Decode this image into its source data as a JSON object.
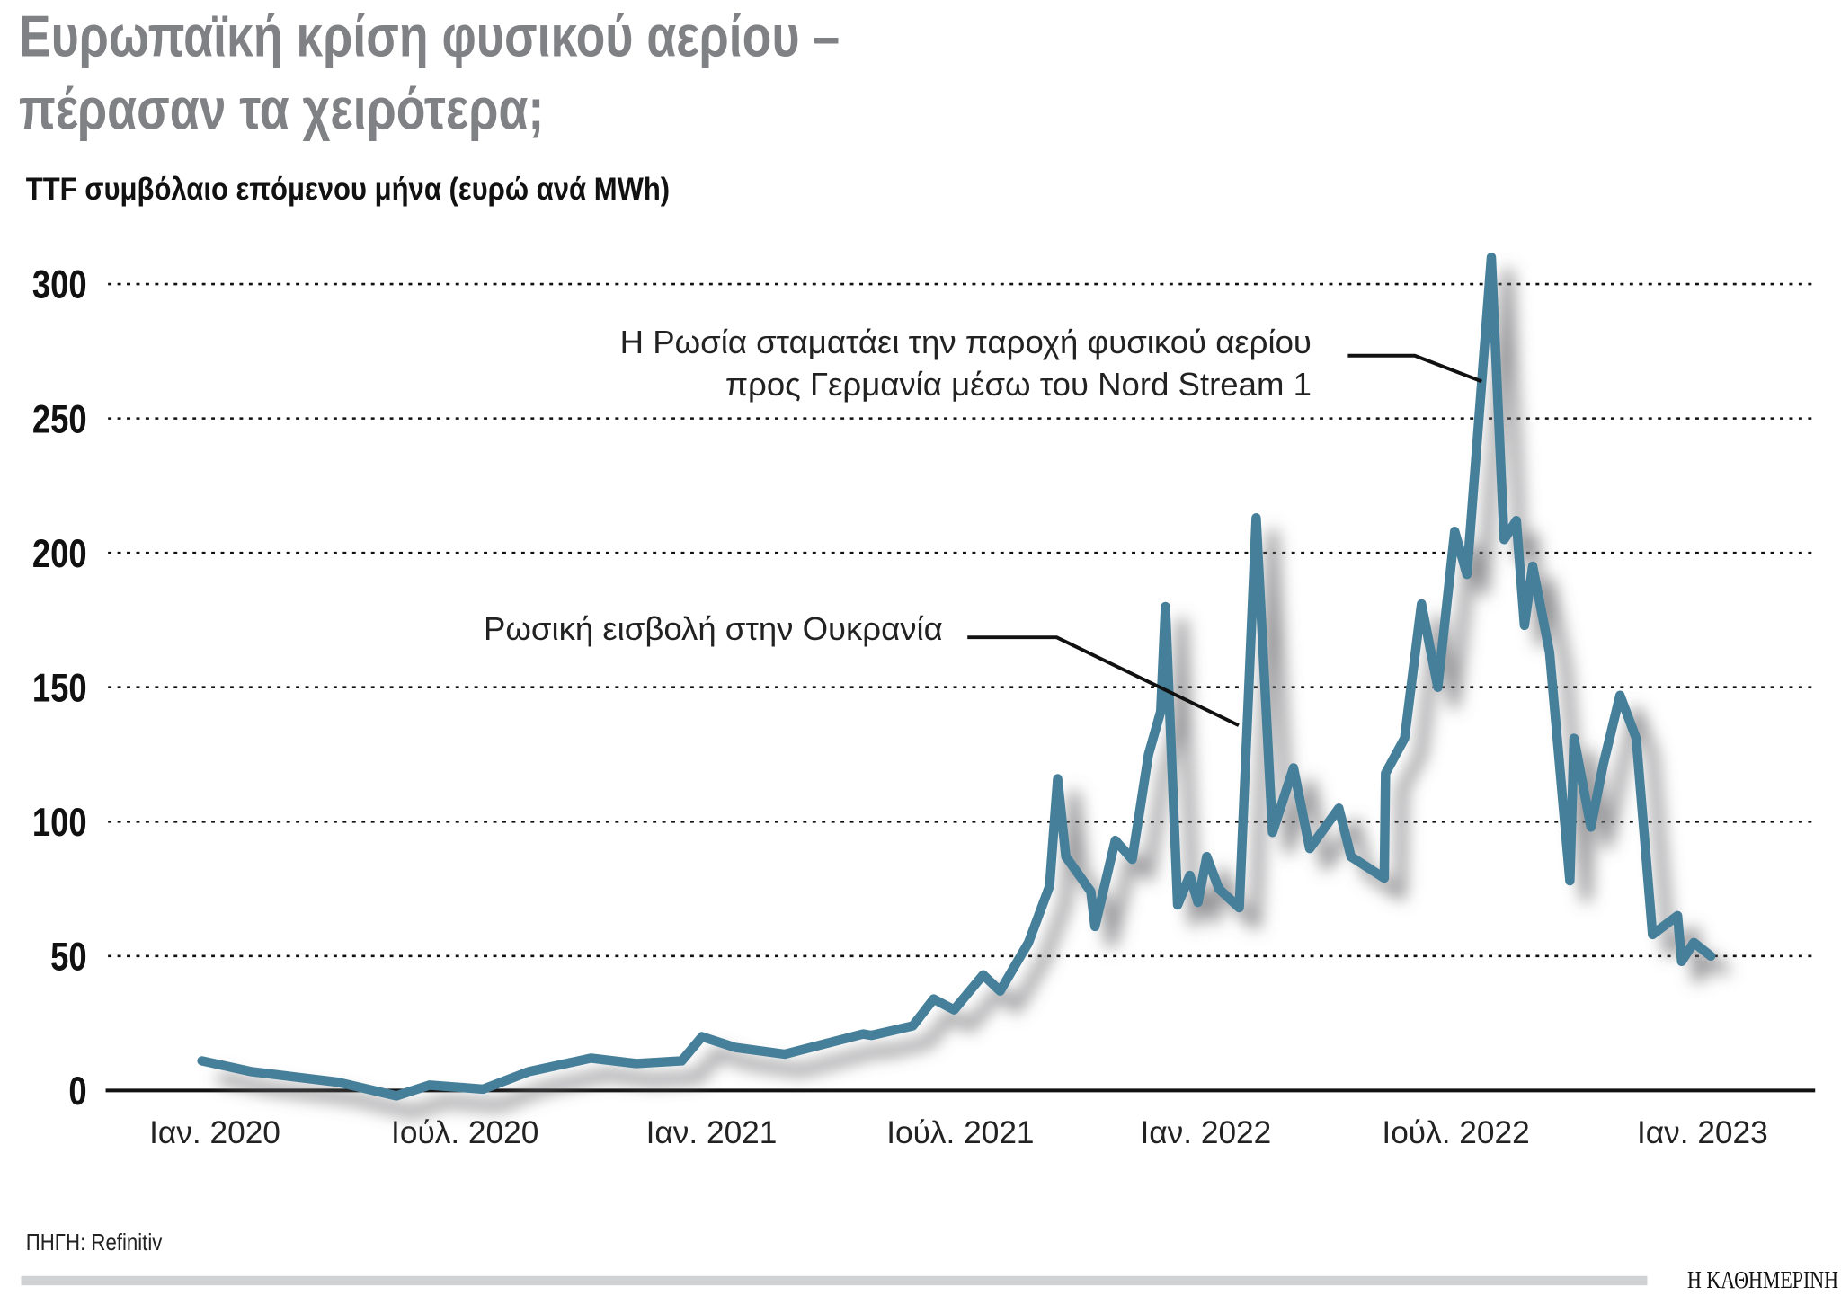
{
  "title_line1": "Ευρωπαϊκή κρίση φυσικού αερίου –",
  "title_line2": "πέρασαν τα χειρότερα;",
  "source": "ΠΗΓΗ: Refinitiv",
  "brand": "Η ΚΑΘΗΜΕΡΙΝΗ",
  "chart_data": {
    "type": "line",
    "title": "Ευρωπαϊκή κρίση φυσικού αερίου – πέρασαν τα χειρότερα;",
    "subtitle": "TTF συμβόλαιο επόμενου μήνα (ευρώ ανά MWh)",
    "ylim": [
      0,
      300
    ],
    "yticks": [
      "0",
      "50",
      "100",
      "150",
      "200",
      "250",
      "300"
    ],
    "xticks": [
      "Ιαν. 2020",
      "Ιούλ. 2020",
      "Ιαν. 2021",
      "Ιούλ. 2021",
      "Ιαν. 2022",
      "Ιούλ. 2022",
      "Ιαν. 2023"
    ],
    "grid": "horizontal dotted",
    "line_color": "#457f99",
    "series": [
      {
        "x": [
          "2019-12-22",
          "2020-01-28",
          "2020-04-01",
          "2020-05-13",
          "2020-06-07",
          "2020-07-16",
          "2020-08-19",
          "2020-10-04",
          "2020-11-07",
          "2020-12-10",
          "2020-12-25",
          "2021-01-19",
          "2021-02-25",
          "2021-04-22",
          "2021-04-28",
          "2021-05-28",
          "2021-06-13",
          "2021-06-28",
          "2021-07-19",
          "2021-08-01",
          "2021-08-22",
          "2021-09-07",
          "2021-09-13",
          "2021-09-19",
          "2021-10-07",
          "2021-10-10",
          "2021-10-25",
          "2021-11-07",
          "2021-11-19",
          "2021-11-28",
          "2021-12-01",
          "2021-12-10",
          "2021-12-19",
          "2021-12-25",
          "2022-01-01",
          "2022-01-10",
          "2022-01-25",
          "2022-02-07",
          "2022-02-19",
          "2022-03-04",
          "2022-03-16",
          "2022-04-07",
          "2022-04-16",
          "2022-05-10",
          "2022-05-11",
          "2022-05-25",
          "2022-06-07",
          "2022-06-19",
          "2022-07-01",
          "2022-07-10",
          "2022-07-28",
          "2022-08-07",
          "2022-08-16",
          "2022-08-22",
          "2022-08-28",
          "2022-09-10",
          "2022-09-25",
          "2022-09-28",
          "2022-10-10",
          "2022-10-19",
          "2022-11-01",
          "2022-11-13",
          "2022-11-25",
          "2022-12-13",
          "2022-12-16",
          "2022-12-25",
          "2023-01-07"
        ],
        "y": [
          11,
          7,
          3,
          -2,
          2,
          0.5,
          7,
          12,
          10,
          11,
          20,
          16,
          13.5,
          21,
          20.5,
          24,
          34,
          30,
          43,
          37,
          55,
          76,
          116,
          87,
          74,
          61,
          93,
          86,
          125,
          141,
          180,
          69,
          80,
          70,
          87,
          75,
          68,
          213,
          96,
          120,
          90,
          105,
          87,
          79,
          118,
          131,
          181,
          150,
          208,
          192,
          310,
          205,
          212,
          173,
          195,
          163,
          78,
          131,
          98,
          121,
          147,
          131,
          58,
          65,
          48,
          55,
          50
        ]
      }
    ],
    "annotations": [
      {
        "text": "Ρωσική εισβολή στην Ουκρανία",
        "date": "2022-02-24"
      },
      {
        "text_line1": "Η Ρωσία σταματάει την παροχή φυσικού αερίου",
        "text_line2": "προς Γερμανία μέσω του Nord Stream 1",
        "date": "2022-08-26"
      }
    ]
  }
}
